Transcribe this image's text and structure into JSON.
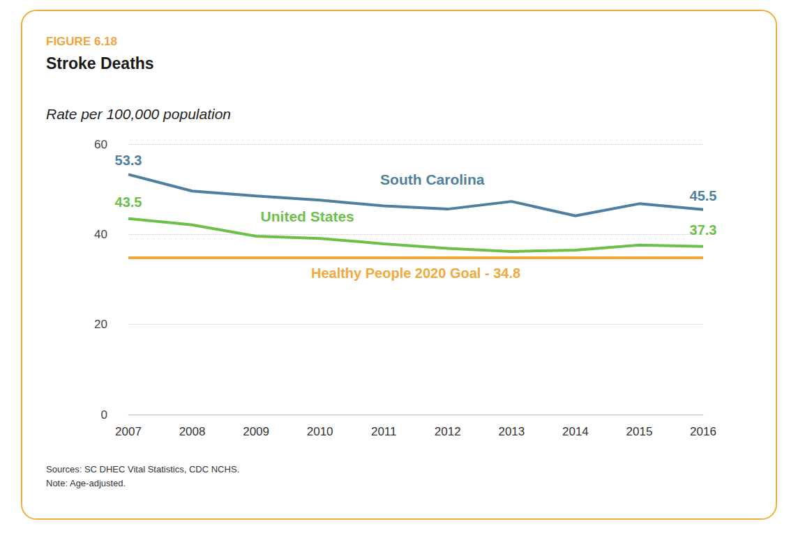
{
  "chart_data": {
    "type": "line",
    "figure_label": "FIGURE 6.18",
    "title": "Stroke Deaths",
    "subtitle": "Rate per 100,000 population",
    "categories": [
      "2007",
      "2008",
      "2009",
      "2010",
      "2011",
      "2012",
      "2013",
      "2014",
      "2015",
      "2016"
    ],
    "series": [
      {
        "name": "South Carolina",
        "color": "#4e7f9e",
        "values": [
          53.3,
          49.6,
          48.5,
          47.6,
          46.3,
          45.6,
          47.3,
          44.1,
          46.8,
          45.5
        ]
      },
      {
        "name": "United States",
        "color": "#6cbf4b",
        "values": [
          43.5,
          42.1,
          39.6,
          39.1,
          37.9,
          36.9,
          36.2,
          36.5,
          37.6,
          37.3
        ]
      }
    ],
    "goal": {
      "value": 34.8,
      "label": "Healthy People 2020 Goal - 34.8",
      "color": "#f2a93b"
    },
    "ylim": [
      0,
      60
    ],
    "yticks": [
      0,
      20,
      40,
      60
    ],
    "grid": true,
    "data_labels": true,
    "sources": "Sources: SC DHEC Vital Statistics, CDC NCHS.",
    "note": "Note: Age-adjusted."
  }
}
